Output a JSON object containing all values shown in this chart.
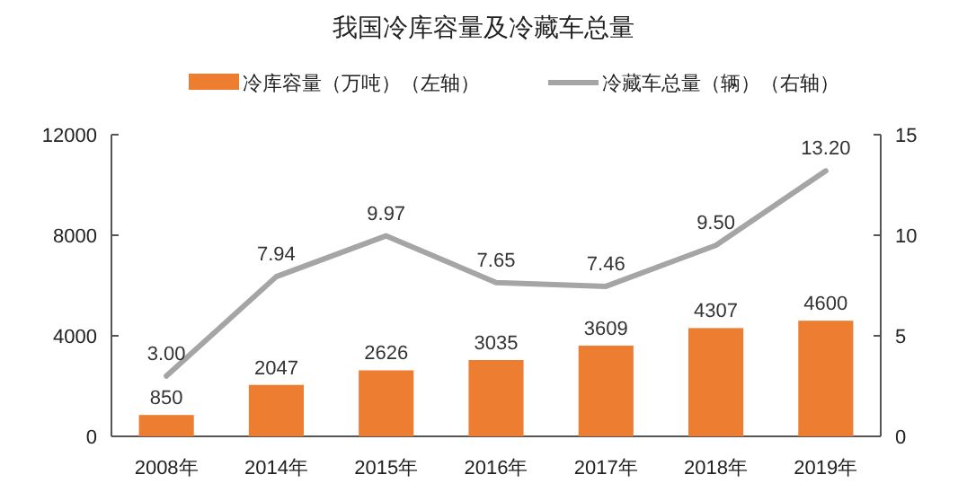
{
  "chart_data": {
    "type": "bar",
    "title": "我国冷库容量及冷藏车总量",
    "categories": [
      "2008年",
      "2014年",
      "2015年",
      "2016年",
      "2017年",
      "2018年",
      "2019年"
    ],
    "series": [
      {
        "name": "冷库容量（万吨）（左轴）",
        "color": "#ed7d31",
        "values": [
          850,
          2047,
          2626,
          3035,
          3609,
          4307,
          4600
        ]
      },
      {
        "name": "冷藏车总量（辆）（右轴）",
        "type": "line",
        "axis": "y2",
        "color": "#a5a5a5",
        "values": [
          3.0,
          7.94,
          9.97,
          7.65,
          7.46,
          9.5,
          13.2
        ],
        "value_labels": [
          "3.00",
          "7.94",
          "9.97",
          "7.65",
          "7.46",
          "9.50",
          "13.20"
        ]
      }
    ],
    "ylim": [
      0,
      12000
    ],
    "yticks": [
      0,
      4000,
      8000,
      12000
    ],
    "y2lim": [
      0,
      15
    ],
    "y2ticks": [
      0,
      5,
      10,
      15
    ],
    "data_labels": true,
    "legend": "top",
    "grid": false
  }
}
